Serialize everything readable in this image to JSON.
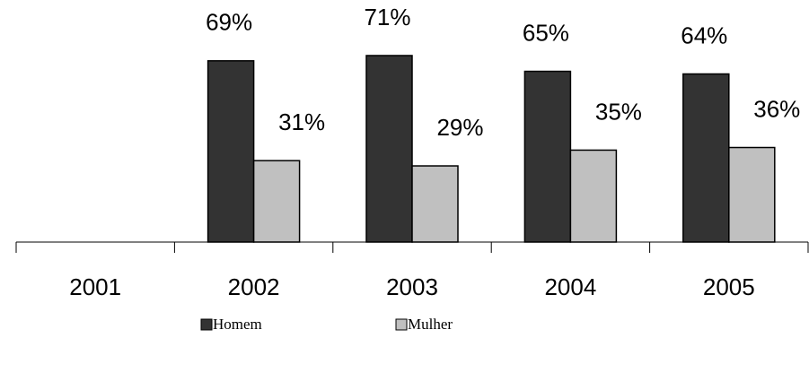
{
  "chart_data": {
    "type": "bar",
    "categories": [
      "2001",
      "2002",
      "2003",
      "2004",
      "2005"
    ],
    "series": [
      {
        "name": "Homem",
        "color": "#333333",
        "values": [
          null,
          69,
          71,
          65,
          64
        ],
        "value_labels": [
          null,
          "69%",
          "71%",
          "65%",
          "64%"
        ]
      },
      {
        "name": "Mulher",
        "color": "#c0c0c0",
        "values": [
          null,
          31,
          29,
          35,
          36
        ],
        "value_labels": [
          null,
          "31%",
          "29%",
          "35%",
          "36%"
        ]
      }
    ]
  }
}
